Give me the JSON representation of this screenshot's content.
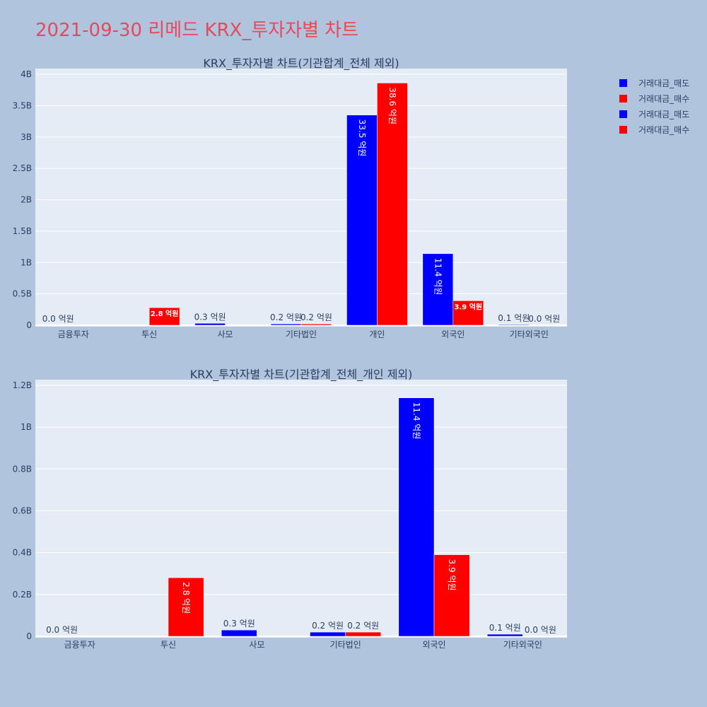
{
  "page_title": "2021-09-30 리메드 KRX_투자자별 차트",
  "colors": {
    "sell": "#0000ff",
    "buy": "#ff0000",
    "plot_bg": "#e5ecf6",
    "page_bg": "#b0c4de",
    "title": "#e8485c"
  },
  "legend": [
    {
      "label": "거래대금_매도",
      "color": "#0000ff"
    },
    {
      "label": "거래대금_매수",
      "color": "#ff0000"
    },
    {
      "label": "거래대금_매도",
      "color": "#0000ff"
    },
    {
      "label": "거래대금_매수",
      "color": "#ff0000"
    }
  ],
  "chart_data": [
    {
      "type": "bar",
      "title": "KRX_투자자별 차트(기관합계_전체 제외)",
      "categories": [
        "금융투자",
        "투신",
        "사모",
        "기타법인",
        "개인",
        "외국인",
        "기타외국인"
      ],
      "series": [
        {
          "name": "거래대금_매도",
          "color": "#0000ff",
          "values": [
            0,
            0,
            30000000,
            20000000,
            3350000000,
            1140000000,
            10000000
          ],
          "labels": [
            "0.0 억원",
            "",
            "0.3 억원",
            "0.2 억원",
            "33.5 억원",
            "11.4 억원",
            "0.1 억원"
          ]
        },
        {
          "name": "거래대금_매수",
          "color": "#ff0000",
          "values": [
            0,
            280000000,
            0,
            20000000,
            3860000000,
            390000000,
            0
          ],
          "labels": [
            "",
            "2.8 억원",
            "",
            "0.2 억원",
            "38.6 억원",
            "3.9 억원",
            "0.0 억원"
          ]
        }
      ],
      "ylim": [
        0,
        4000000000
      ],
      "yticks": [
        0,
        500000000,
        1000000000,
        1500000000,
        2000000000,
        2500000000,
        3000000000,
        3500000000,
        4000000000
      ],
      "ytick_labels": [
        "0",
        "0.5B",
        "1B",
        "1.5B",
        "2B",
        "2.5B",
        "3B",
        "3.5B",
        "4B"
      ],
      "grid": true
    },
    {
      "type": "bar",
      "title": "KRX_투자자별 차트(기관합계_전체_개인 제외)",
      "categories": [
        "금융투자",
        "투신",
        "사모",
        "기타법인",
        "외국인",
        "기타외국인"
      ],
      "series": [
        {
          "name": "거래대금_매도",
          "color": "#0000ff",
          "values": [
            0,
            0,
            30000000,
            20000000,
            1140000000,
            10000000
          ],
          "labels": [
            "0.0 억원",
            "",
            "0.3 억원",
            "0.2 억원",
            "11.4 억원",
            "0.1 억원"
          ]
        },
        {
          "name": "거래대금_매수",
          "color": "#ff0000",
          "values": [
            0,
            280000000,
            0,
            20000000,
            390000000,
            0
          ],
          "labels": [
            "",
            "2.8 억원",
            "",
            "0.2 억원",
            "3.9 억원",
            "0.0 억원"
          ]
        }
      ],
      "ylim": [
        0,
        1200000000
      ],
      "yticks": [
        0,
        200000000,
        400000000,
        600000000,
        800000000,
        1000000000,
        1200000000
      ],
      "ytick_labels": [
        "0",
        "0.2B",
        "0.4B",
        "0.6B",
        "0.8B",
        "1B",
        "1.2B"
      ],
      "grid": true
    }
  ]
}
